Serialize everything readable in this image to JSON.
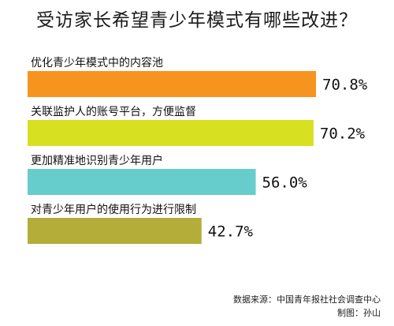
{
  "chart_data": {
    "type": "bar",
    "orientation": "horizontal",
    "title": "受访家长希望青少年模式有哪些改进？",
    "categories": [
      "优化青少年模式中的内容池",
      "关联监护人的账号平台，方便监督",
      "更加精准地识别青少年用户",
      "对青少年用户的使用行为进行限制"
    ],
    "values": [
      70.8,
      70.2,
      56.0,
      42.7
    ],
    "value_labels": [
      "70.8%",
      "70.2%",
      "56.0%",
      "42.7%"
    ],
    "colors": [
      "#f7941d",
      "#d7e021",
      "#66cdcc",
      "#b5ad3a"
    ],
    "xlim": [
      0,
      100
    ],
    "grid": false,
    "legend": "none"
  },
  "footer": {
    "source": "数据来源：中国青年报社社会调查中心",
    "credit": "制图：孙山"
  }
}
